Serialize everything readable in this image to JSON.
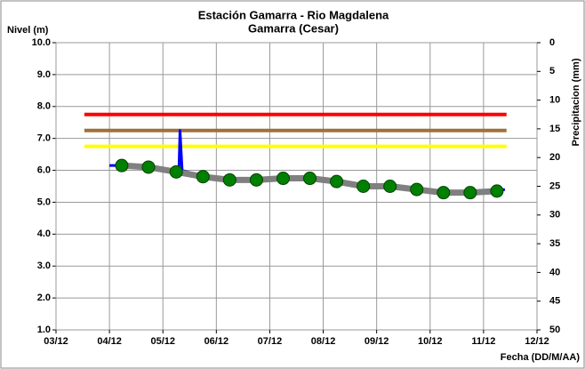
{
  "chart_data": {
    "type": "line",
    "title": "Estación Gamarra - Rio Magdalena",
    "subtitle": "Gamarra (Cesar)",
    "ylabel": "Nivel (m)",
    "y2label": "Precipitacion (mm)",
    "xlabel": "Fecha (DD/M/AA)",
    "xlim": [
      3,
      12
    ],
    "xticks": [
      {
        "value": 3,
        "label": "03/12"
      },
      {
        "value": 4,
        "label": "04/12"
      },
      {
        "value": 5,
        "label": "05/12"
      },
      {
        "value": 6,
        "label": "06/12"
      },
      {
        "value": 7,
        "label": "07/12"
      },
      {
        "value": 8,
        "label": "08/12"
      },
      {
        "value": 9,
        "label": "09/12"
      },
      {
        "value": 10,
        "label": "10/12"
      },
      {
        "value": 11,
        "label": "11/12"
      },
      {
        "value": 12,
        "label": "12/12"
      }
    ],
    "ylim": [
      1,
      10
    ],
    "yticks": [
      {
        "value": 1,
        "label": "1.0"
      },
      {
        "value": 2,
        "label": "2.0"
      },
      {
        "value": 3,
        "label": "3.0"
      },
      {
        "value": 4,
        "label": "4.0"
      },
      {
        "value": 5,
        "label": "5.0"
      },
      {
        "value": 6,
        "label": "6.0"
      },
      {
        "value": 7,
        "label": "7.0"
      },
      {
        "value": 8,
        "label": "8.0"
      },
      {
        "value": 9,
        "label": "9.0"
      },
      {
        "value": 10,
        "label": "10.0"
      }
    ],
    "y2lim": [
      50,
      0
    ],
    "y2ticks": [
      0,
      5,
      10,
      15,
      20,
      25,
      30,
      35,
      40,
      45,
      50
    ],
    "grid": true,
    "series": [
      {
        "color": "#ff0000",
        "width": 4,
        "x": [
          3.53,
          11.43
        ],
        "values": [
          7.75,
          7.75
        ]
      },
      {
        "color": "#a0703a",
        "width": 4,
        "x": [
          3.53,
          11.43
        ],
        "values": [
          7.25,
          7.25
        ]
      },
      {
        "color": "#ffff00",
        "width": 4,
        "x": [
          3.53,
          11.43
        ],
        "values": [
          6.75,
          6.75
        ]
      },
      {
        "color": "#0000ff",
        "width": 3,
        "x": [
          4.0,
          4.23,
          4.73,
          5.25,
          5.3,
          5.32,
          5.36,
          5.75,
          6.25,
          6.75,
          7.25,
          7.75,
          8.25,
          8.75,
          9.25,
          9.75,
          10.25,
          10.75,
          11.25,
          11.4
        ],
        "values": [
          6.15,
          6.15,
          6.1,
          5.95,
          6.0,
          7.25,
          6.0,
          5.8,
          5.7,
          5.7,
          5.8,
          5.8,
          5.65,
          5.5,
          5.5,
          5.4,
          5.3,
          5.25,
          5.35,
          5.4
        ]
      },
      {
        "color": "#808080",
        "marker_color": "#008000",
        "marker": true,
        "width": 7,
        "x": [
          4.23,
          4.73,
          5.25,
          5.75,
          6.25,
          6.75,
          7.25,
          7.75,
          8.25,
          8.75,
          9.25,
          9.75,
          10.25,
          10.75,
          11.25
        ],
        "values": [
          6.15,
          6.1,
          5.95,
          5.8,
          5.7,
          5.7,
          5.75,
          5.75,
          5.65,
          5.5,
          5.5,
          5.4,
          5.3,
          5.3,
          5.35
        ]
      }
    ]
  }
}
